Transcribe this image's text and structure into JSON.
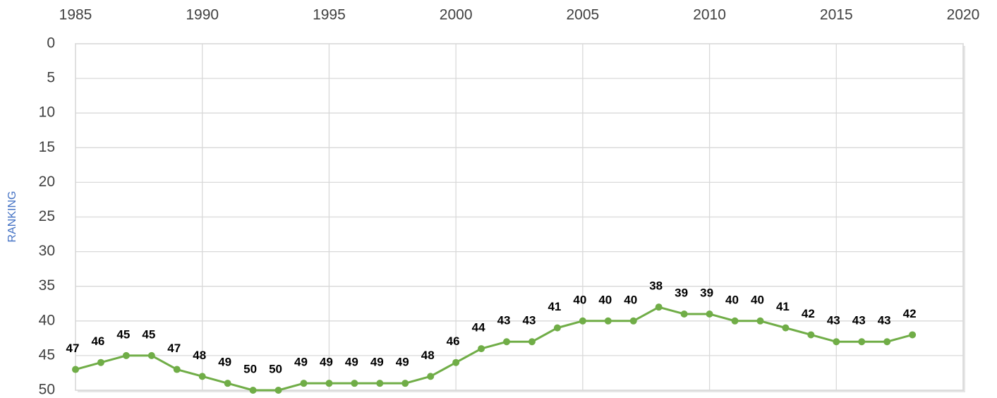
{
  "chart_data": {
    "type": "line",
    "y_axis_label": "RANKING",
    "x": [
      1985,
      1986,
      1987,
      1988,
      1989,
      1990,
      1991,
      1992,
      1993,
      1994,
      1995,
      1996,
      1997,
      1998,
      1999,
      2000,
      2001,
      2002,
      2003,
      2004,
      2005,
      2006,
      2007,
      2008,
      2009,
      2010,
      2011,
      2012,
      2013,
      2014,
      2015,
      2016,
      2017,
      2018
    ],
    "values": [
      47,
      46,
      45,
      45,
      47,
      48,
      49,
      50,
      50,
      49,
      49,
      49,
      49,
      49,
      48,
      46,
      44,
      43,
      43,
      41,
      40,
      40,
      40,
      38,
      39,
      39,
      40,
      40,
      41,
      42,
      43,
      43,
      43,
      42
    ],
    "color": "#70ad47",
    "xlim": [
      1985,
      2020
    ],
    "xticks": [
      1985,
      1990,
      1995,
      2000,
      2005,
      2010,
      2015,
      2020
    ],
    "ylim": [
      0,
      50
    ],
    "yticks": [
      0,
      5,
      10,
      15,
      20,
      25,
      30,
      35,
      40,
      45,
      50
    ],
    "y_reversed": true,
    "x_axis_top": true,
    "grid": true,
    "data_labels": true
  }
}
